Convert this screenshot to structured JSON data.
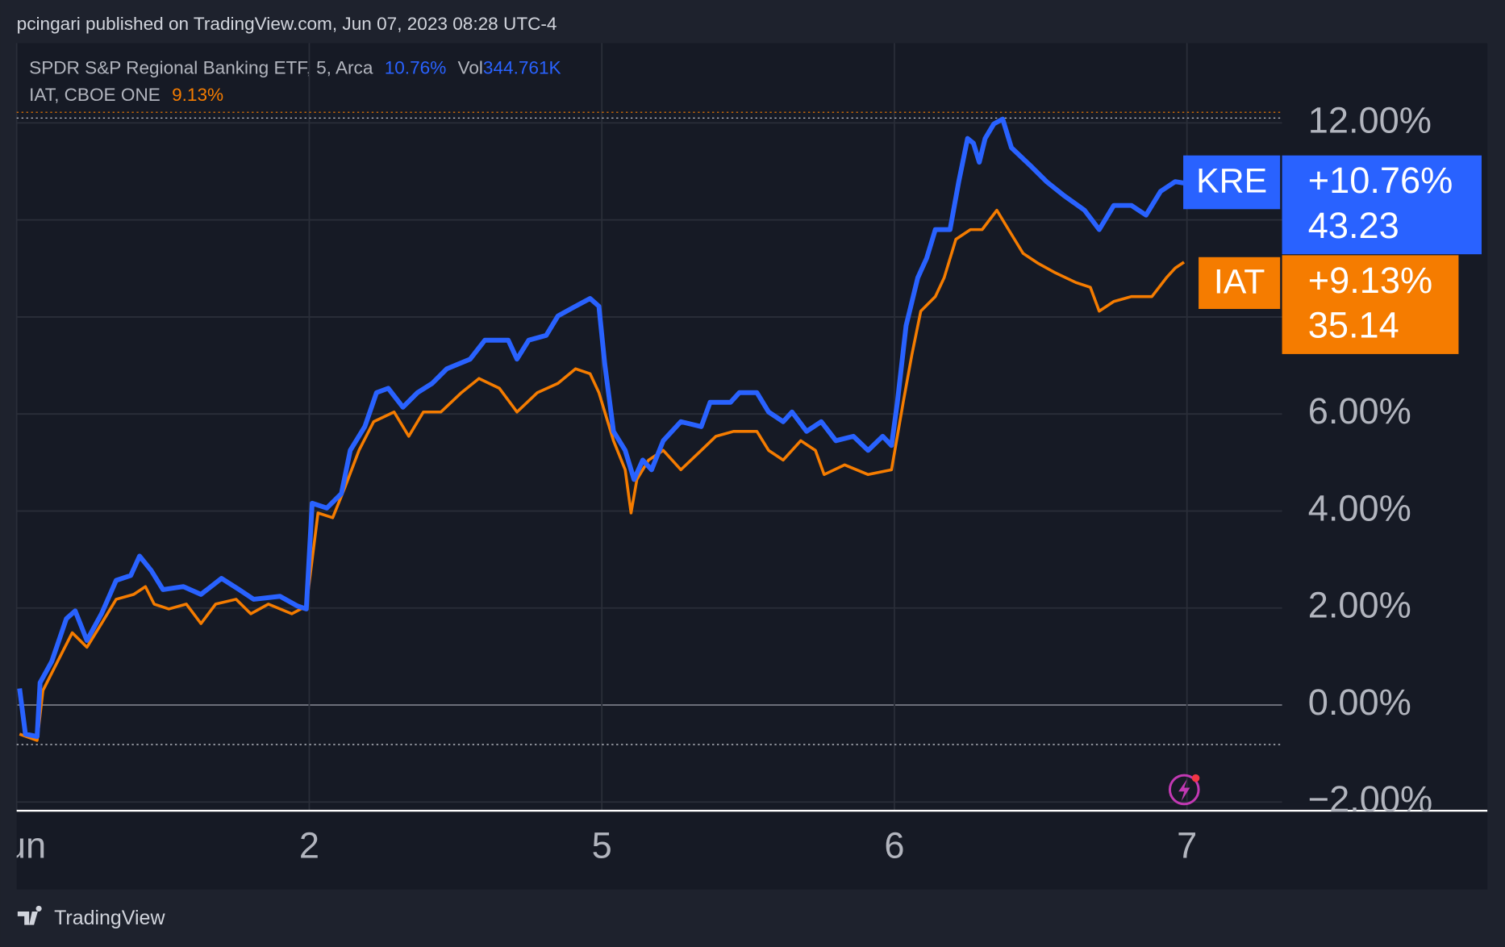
{
  "header": {
    "text": "pcingari published on TradingView.com, Jun 07, 2023 08:28 UTC-4"
  },
  "legend": {
    "line1_name": "SPDR S&P Regional Banking ETF, 5, Arca",
    "line1_change": "10.76%",
    "line1_vol_label": "Vol",
    "line1_vol": "344.761K",
    "line2_name": "IAT, CBOE ONE",
    "line2_change": "9.13%"
  },
  "footer": {
    "brand": "TradingView"
  },
  "chart_data": {
    "type": "line",
    "xlim": [
      0,
      4.325
    ],
    "xticks": [
      {
        "value": 0,
        "label": "Jun"
      },
      {
        "value": 1,
        "label": "2"
      },
      {
        "value": 2,
        "label": "5"
      },
      {
        "value": 3,
        "label": "6"
      },
      {
        "value": 4,
        "label": "7"
      }
    ],
    "ylim": [
      -2.18,
      12.2
    ],
    "yticks": [
      {
        "value": -2,
        "label": "−2.00%"
      },
      {
        "value": 0,
        "label": "0.00%"
      },
      {
        "value": 2,
        "label": "2.00%"
      },
      {
        "value": 4,
        "label": "4.00%"
      },
      {
        "value": 6,
        "label": "6.00%"
      },
      {
        "value": 8,
        "label": ""
      },
      {
        "value": 10,
        "label": ""
      },
      {
        "value": 12,
        "label": "12.00%"
      }
    ],
    "grid": true,
    "series": [
      {
        "name": "KRE",
        "color": "#2962ff",
        "change": {
          "value": 10.76,
          "label": "+10.76%"
        },
        "price": 43.23,
        "x": [
          0.01,
          0.03,
          0.07,
          0.08,
          0.12,
          0.17,
          0.2,
          0.24,
          0.29,
          0.34,
          0.39,
          0.42,
          0.46,
          0.5,
          0.57,
          0.63,
          0.7,
          0.76,
          0.81,
          0.9,
          0.96,
          0.99,
          1.01,
          1.06,
          1.11,
          1.14,
          1.19,
          1.23,
          1.27,
          1.32,
          1.37,
          1.42,
          1.47,
          1.55,
          1.6,
          1.68,
          1.71,
          1.75,
          1.81,
          1.85,
          1.91,
          1.96,
          1.99,
          2.01,
          2.04,
          2.08,
          2.11,
          2.14,
          2.17,
          2.21,
          2.27,
          2.34,
          2.37,
          2.44,
          2.47,
          2.53,
          2.57,
          2.62,
          2.65,
          2.7,
          2.75,
          2.8,
          2.86,
          2.91,
          2.96,
          2.99,
          3.01,
          3.04,
          3.08,
          3.11,
          3.14,
          3.19,
          3.22,
          3.25,
          3.27,
          3.29,
          3.31,
          3.34,
          3.37,
          3.4,
          3.47,
          3.52,
          3.58,
          3.65,
          3.7,
          3.75,
          3.81,
          3.86,
          3.91,
          3.96,
          3.99
        ],
        "values": [
          0.34,
          -0.6,
          -0.65,
          0.46,
          0.9,
          1.78,
          1.94,
          1.33,
          1.88,
          2.57,
          2.67,
          3.07,
          2.77,
          2.38,
          2.44,
          2.28,
          2.61,
          2.38,
          2.18,
          2.24,
          2.04,
          1.98,
          4.16,
          4.06,
          4.36,
          5.25,
          5.74,
          6.44,
          6.53,
          6.14,
          6.44,
          6.63,
          6.93,
          7.13,
          7.52,
          7.52,
          7.13,
          7.52,
          7.62,
          8.02,
          8.22,
          8.38,
          8.22,
          7.03,
          5.64,
          5.25,
          4.65,
          5.05,
          4.85,
          5.45,
          5.84,
          5.74,
          6.24,
          6.24,
          6.44,
          6.44,
          6.04,
          5.84,
          6.04,
          5.64,
          5.84,
          5.45,
          5.54,
          5.25,
          5.54,
          5.35,
          6.24,
          7.82,
          8.81,
          9.21,
          9.8,
          9.8,
          10.79,
          11.68,
          11.58,
          11.19,
          11.68,
          11.98,
          12.08,
          11.49,
          11.09,
          10.79,
          10.5,
          10.2,
          9.8,
          10.3,
          10.3,
          10.1,
          10.59,
          10.79,
          10.76
        ]
      },
      {
        "name": "IAT",
        "color": "#f57c00",
        "change": {
          "value": 9.13,
          "label": "+9.13%"
        },
        "price": 35.14,
        "x": [
          0.01,
          0.07,
          0.09,
          0.14,
          0.19,
          0.24,
          0.29,
          0.34,
          0.4,
          0.44,
          0.47,
          0.52,
          0.58,
          0.63,
          0.68,
          0.75,
          0.8,
          0.86,
          0.94,
          0.99,
          1.03,
          1.08,
          1.12,
          1.17,
          1.22,
          1.29,
          1.34,
          1.39,
          1.45,
          1.52,
          1.58,
          1.65,
          1.71,
          1.78,
          1.85,
          1.91,
          1.96,
          1.99,
          2.04,
          2.08,
          2.1,
          2.12,
          2.16,
          2.21,
          2.27,
          2.34,
          2.39,
          2.45,
          2.53,
          2.57,
          2.62,
          2.68,
          2.73,
          2.76,
          2.83,
          2.91,
          2.99,
          3.03,
          3.06,
          3.09,
          3.14,
          3.17,
          3.21,
          3.26,
          3.3,
          3.35,
          3.39,
          3.44,
          3.49,
          3.55,
          3.62,
          3.67,
          3.7,
          3.75,
          3.81,
          3.88,
          3.93,
          3.96,
          3.99
        ],
        "values": [
          -0.6,
          -0.73,
          0.3,
          0.9,
          1.49,
          1.19,
          1.68,
          2.18,
          2.28,
          2.44,
          2.08,
          1.98,
          2.08,
          1.68,
          2.08,
          2.18,
          1.88,
          2.08,
          1.88,
          2.04,
          3.96,
          3.86,
          4.46,
          5.25,
          5.84,
          6.04,
          5.54,
          6.04,
          6.04,
          6.44,
          6.73,
          6.53,
          6.04,
          6.44,
          6.63,
          6.93,
          6.83,
          6.44,
          5.45,
          4.85,
          3.96,
          4.65,
          5.05,
          5.25,
          4.85,
          5.25,
          5.54,
          5.64,
          5.64,
          5.25,
          5.05,
          5.45,
          5.25,
          4.75,
          4.95,
          4.75,
          4.85,
          6.24,
          7.23,
          8.12,
          8.42,
          8.81,
          9.6,
          9.8,
          9.8,
          10.2,
          9.8,
          9.31,
          9.11,
          8.91,
          8.71,
          8.61,
          8.12,
          8.32,
          8.42,
          8.42,
          8.81,
          9.01,
          9.13
        ]
      }
    ]
  }
}
